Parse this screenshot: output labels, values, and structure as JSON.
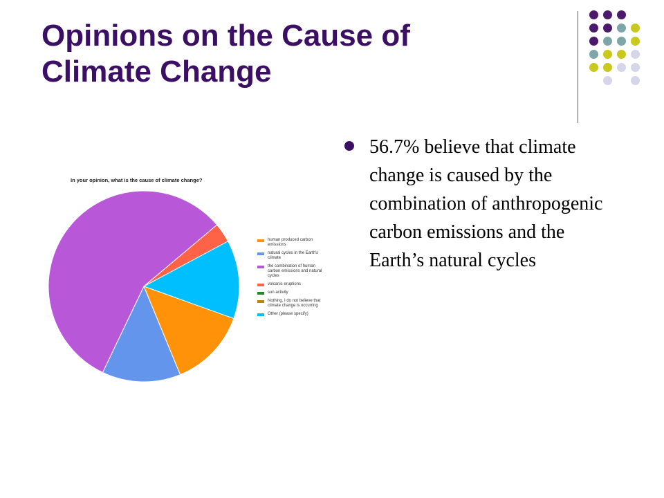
{
  "slide": {
    "title_lines": [
      "Opinions on the Cause of",
      "Climate Change"
    ],
    "bullet": "56.7% believe that climate change is caused by the combination of anthropogenic carbon emissions and the Earth’s natural cycles"
  },
  "theme": {
    "title_color": "#3b0f63",
    "dot_colors": [
      "#4b1a6b",
      "#7ea5a8",
      "#c8c81e",
      "#d6d6ea"
    ]
  },
  "chart_data": {
    "type": "pie",
    "title": "In your opinion, what is the cause of climate change?",
    "legend_position": "right",
    "categories": [
      "human produced carbon emissions",
      "natural cycles in the Earth's climate",
      "the combination of human carbon emissions and natural cycles",
      "volcanic eruptions",
      "sun activity",
      "Nothing, I do not believe that climate change is occurring",
      "Other (please specify)"
    ],
    "values": [
      13.3,
      13.3,
      56.7,
      3.3,
      0,
      0,
      13.3
    ],
    "colors": [
      "#ff9208",
      "#6495ed",
      "#b857d8",
      "#ff6347",
      "#228b22",
      "#b8860b",
      "#00bfff"
    ]
  }
}
